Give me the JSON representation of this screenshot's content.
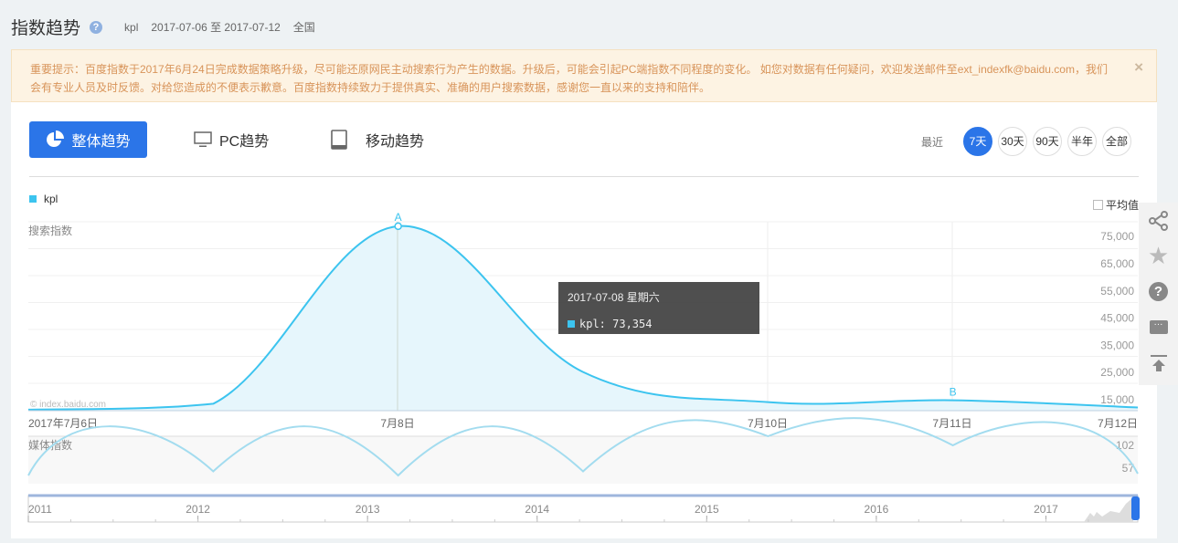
{
  "header": {
    "title": "指数趋势",
    "keyword": "kpl",
    "date_range": "2017-07-06 至 2017-07-12",
    "region": "全国"
  },
  "notice": {
    "text_line1": "重要提示：百度指数于2017年6月24日完成数据策略升级，尽可能还原网民主动搜索行为产生的数据。升级后，可能会引起PC端指数不同程度的变化。 如您对数据有任何疑问，欢迎发送邮件至ext_indexfk@baidu.com，我们",
    "text_line2": "会有专业人员及时反馈。对给您造成的不便表示歉意。百度指数持续致力于提供真实、准确的用户搜索数据，感谢您一直以来的支持和陪伴。",
    "close": "×"
  },
  "tabs": [
    {
      "label": "整体趋势",
      "icon": "pie-chart-icon",
      "active": true
    },
    {
      "label": "PC趋势",
      "icon": "monitor-icon"
    },
    {
      "label": "移动趋势",
      "icon": "tablet-icon"
    }
  ],
  "range": {
    "label": "最近",
    "options": [
      "7天",
      "30天",
      "90天",
      "半年",
      "全部"
    ],
    "selected": "7天"
  },
  "average_label": "平均值",
  "side_tools": [
    "share-icon",
    "star-icon",
    "help-icon",
    "comment-icon",
    "back-to-top-icon"
  ],
  "tooltip": {
    "title": "2017-07-08 星期六",
    "value": "kpl: 73,354"
  },
  "watermark": "© index.baidu.com",
  "colors": {
    "accent": "#2b75e8",
    "series": "#3cc4ef"
  },
  "chart_data": [
    {
      "type": "area",
      "ylabel": "搜索指数",
      "legend": [
        "kpl"
      ],
      "x": [
        "2017-07-06",
        "2017-07-07",
        "2017-07-08",
        "2017-07-09",
        "2017-07-10",
        "2017-07-11",
        "2017-07-12"
      ],
      "xtick_labels": [
        "2017年7月6日",
        "7月8日",
        "7月10日",
        "7月11日",
        "7月12日"
      ],
      "series": [
        {
          "name": "kpl",
          "values": [
            5200,
            7400,
            73354,
            19200,
            8000,
            8700,
            6000
          ]
        }
      ],
      "yticks": [
        "15,000",
        "25,000",
        "35,000",
        "45,000",
        "55,000",
        "65,000",
        "75,000"
      ],
      "ylim": [
        5000,
        75000
      ],
      "annotations": [
        {
          "label": "A",
          "x": "2017-07-08"
        },
        {
          "label": "B",
          "x": "2017-07-11"
        }
      ],
      "grid": true
    },
    {
      "type": "line",
      "ylabel": "媒体指数",
      "yticks": [
        "57",
        "102"
      ],
      "values": [
        16,
        25,
        16,
        25,
        108,
        82,
        20
      ]
    },
    {
      "type": "navigator",
      "xtick_labels": [
        "2011",
        "2012",
        "2013",
        "2014",
        "2015",
        "2016",
        "2017"
      ]
    }
  ]
}
